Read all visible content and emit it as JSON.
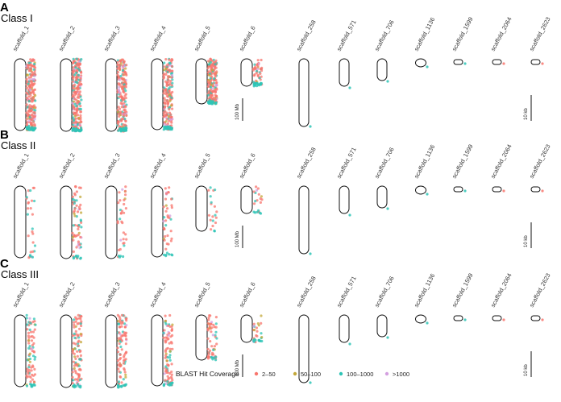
{
  "panels": [
    {
      "letter": "A",
      "class_name": "Class I"
    },
    {
      "letter": "B",
      "class_name": "Class II"
    },
    {
      "letter": "C",
      "class_name": "Class III"
    }
  ],
  "scaffolds": [
    "scaffold_1",
    "scaffold_2",
    "scaffold_3",
    "scaffold_4",
    "scaffold_5",
    "scaffold_6",
    "scaffold_258",
    "scaffold_571",
    "scaffold_706",
    "scaffold_1136",
    "scaffold_1599",
    "scaffold_2064",
    "scaffold_2623"
  ],
  "scale_bars": {
    "large": "100 Mb",
    "small": "10 kb"
  },
  "legend": {
    "title": "BLAST Hit Coverage",
    "items": [
      {
        "label": "2–50",
        "color": "#F8766D"
      },
      {
        "label": "50–100",
        "color": "#C3A83A"
      },
      {
        "label": "100–1000",
        "color": "#2EC4B6"
      },
      {
        "label": ">1000",
        "color": "#D4A0E0"
      }
    ]
  },
  "density": {
    "panel_A": [
      1.0,
      1.0,
      0.9,
      0.85,
      0.8,
      0.7
    ],
    "panel_B": [
      0.12,
      0.3,
      0.15,
      0.18,
      0.08,
      0.25
    ],
    "panel_C": [
      0.35,
      0.45,
      0.45,
      0.4,
      0.25,
      0.35
    ]
  }
}
